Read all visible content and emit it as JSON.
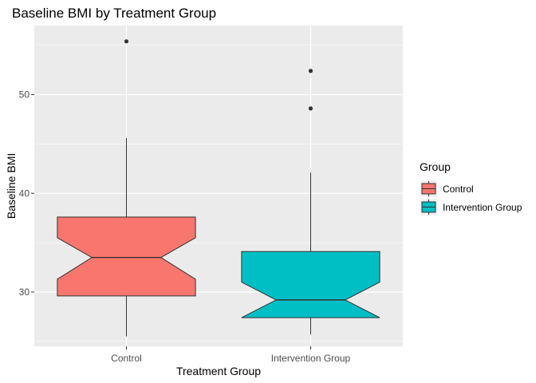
{
  "chart_data": {
    "type": "boxplot",
    "title": "Baseline BMI by Treatment Group",
    "xlabel": "Treatment Group",
    "ylabel": "Baseline BMI",
    "categories": [
      "Control",
      "Intervention Group"
    ],
    "ylim": [
      24.5,
      57.0
    ],
    "yticks": [
      30,
      40,
      50
    ],
    "notched": true,
    "grid": true,
    "legend": {
      "title": "Group",
      "position": "right",
      "entries": [
        "Control",
        "Intervention Group"
      ]
    },
    "series": [
      {
        "name": "Control",
        "color": "#F8766D",
        "whisker_low": 25.5,
        "q1": 29.6,
        "notch_low": 31.3,
        "median": 33.5,
        "notch_high": 35.5,
        "q3": 37.6,
        "whisker_high": 45.6,
        "outliers": [
          55.4
        ]
      },
      {
        "name": "Intervention Group",
        "color": "#00BFC4",
        "whisker_low": 25.7,
        "q1": 27.4,
        "notch_low": 27.4,
        "median": 29.2,
        "notch_high": 31.0,
        "q3": 34.1,
        "whisker_high": 42.1,
        "outliers": [
          48.6,
          52.4
        ]
      }
    ]
  }
}
